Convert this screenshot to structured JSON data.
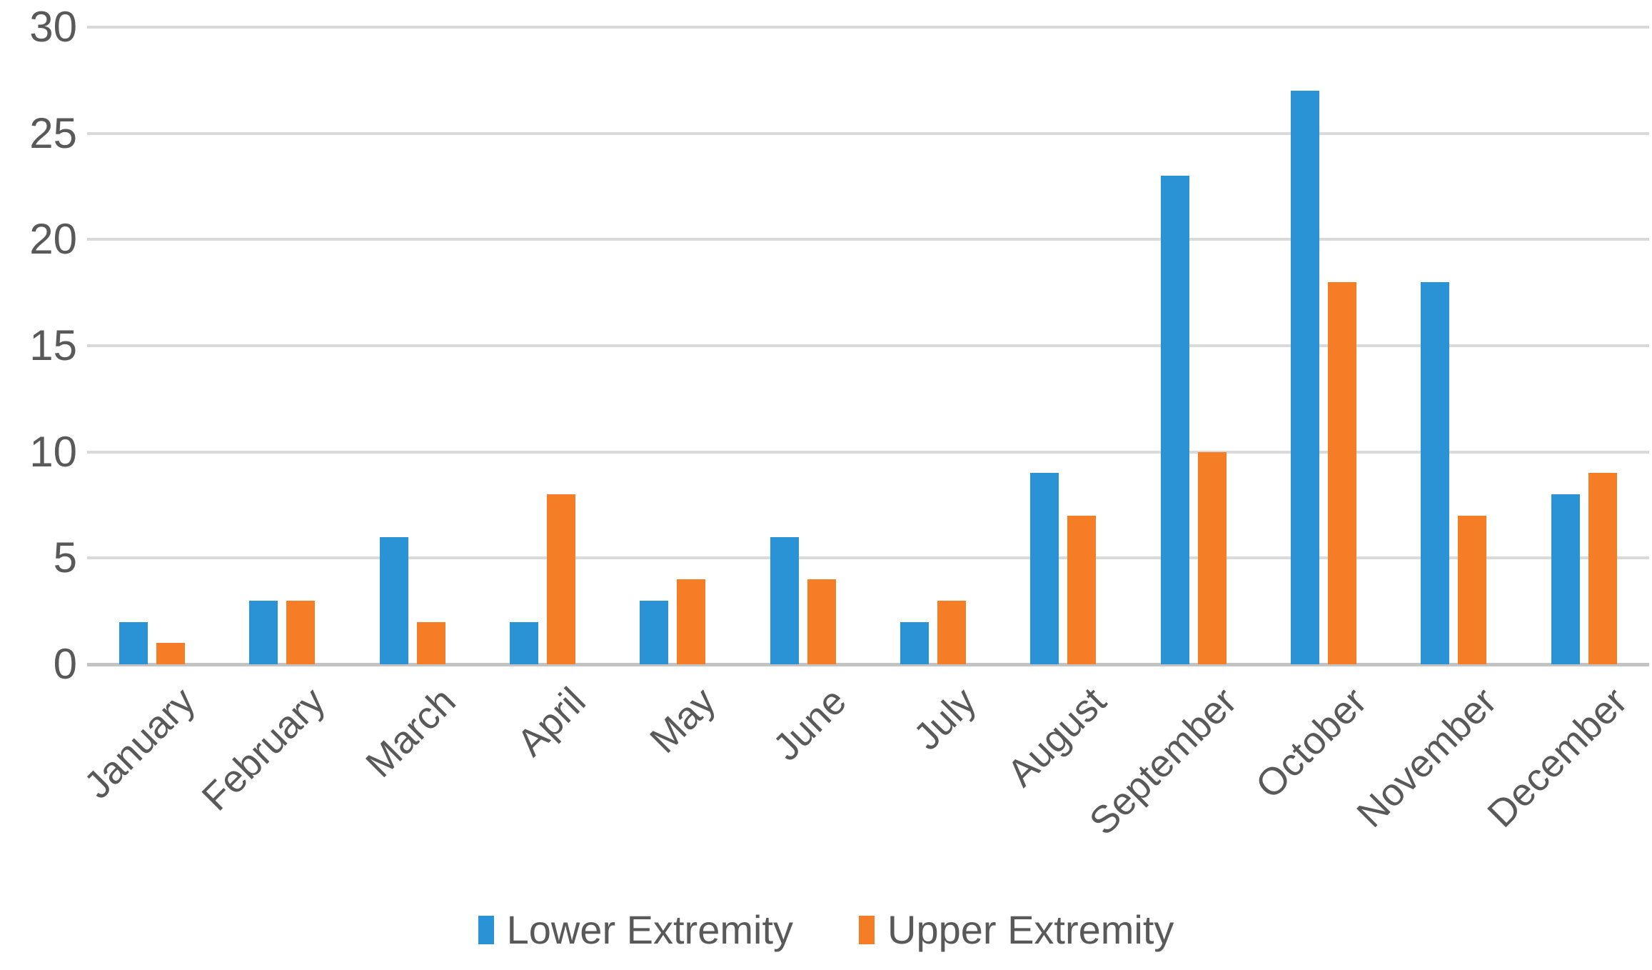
{
  "chart_data": {
    "type": "bar",
    "title": "",
    "xlabel": "",
    "ylabel": "",
    "categories": [
      "January",
      "February",
      "March",
      "April",
      "May",
      "June",
      "July",
      "August",
      "September",
      "October",
      "November",
      "December"
    ],
    "series": [
      {
        "name": "Lower Extremity",
        "color": "#2a93d5",
        "values": [
          2,
          3,
          6,
          2,
          3,
          6,
          2,
          9,
          23,
          27,
          18,
          8
        ]
      },
      {
        "name": "Upper Extremity",
        "color": "#f47d26",
        "values": [
          1,
          3,
          2,
          8,
          4,
          4,
          3,
          7,
          10,
          18,
          7,
          9
        ]
      }
    ],
    "ylim": [
      0,
      30
    ],
    "yticks": [
      30,
      25,
      20,
      15,
      10,
      5,
      0
    ],
    "grid": true,
    "legend_position": "bottom"
  },
  "colors": {
    "gridline": "#d9d9d9",
    "axis_line": "#c3c3c3",
    "tick_text": "#595959",
    "background": "#ffffff"
  }
}
